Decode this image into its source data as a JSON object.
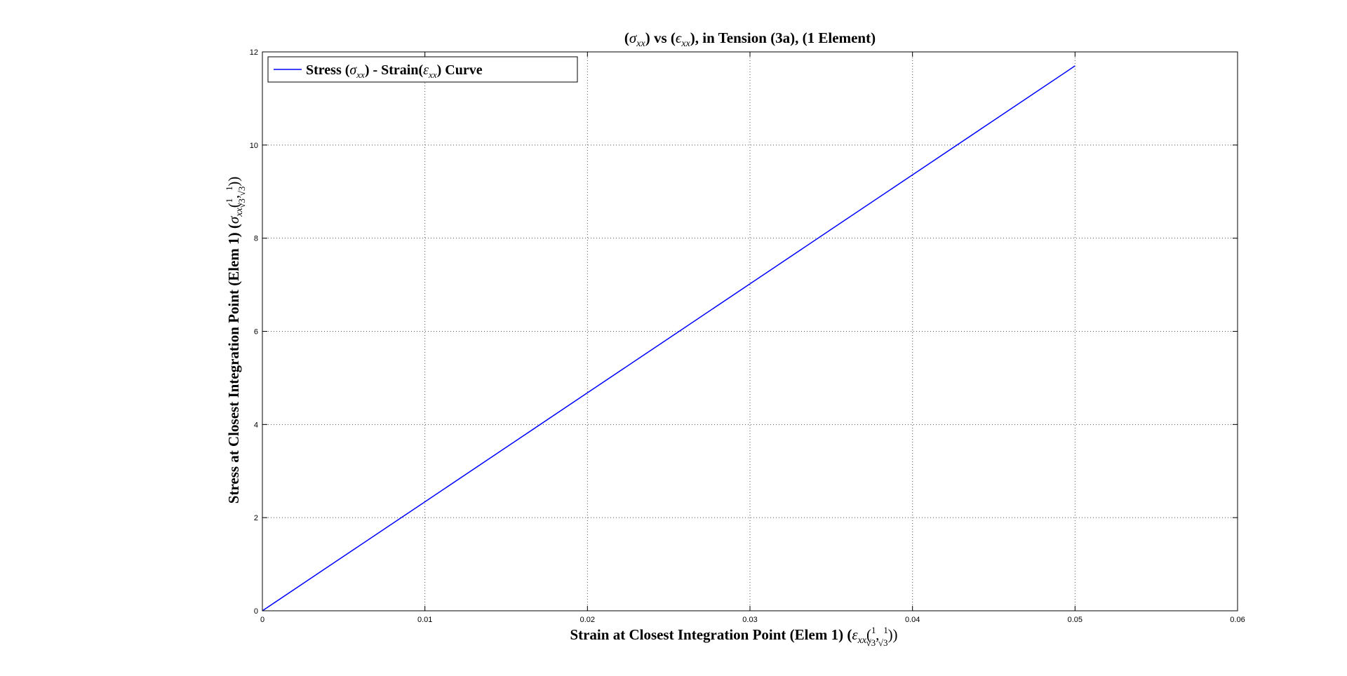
{
  "chart_data": {
    "type": "line",
    "title": "(σ_xx) vs (ε_xx), in Tension (3a), (1 Element)",
    "xlabel": "Strain at Closest Integration Point (Elem 1) (ε_xx(1/√3, 1/√3))",
    "ylabel": "Stress at Closest Integration Point (Elem 1) (σ_xx(1/√3, 1/√3))",
    "xlim": [
      0,
      0.06
    ],
    "ylim": [
      0,
      12
    ],
    "xticks": [
      "0",
      "0.01",
      "0.02",
      "0.03",
      "0.04",
      "0.05",
      "0.06"
    ],
    "yticks": [
      "0",
      "2",
      "4",
      "6",
      "8",
      "10",
      "12"
    ],
    "grid": true,
    "legend_position": "top-left",
    "series": [
      {
        "name": "Stress (σ_xx) - Strain(ε_xx) Curve",
        "color": "#0000ff",
        "x": [
          0,
          0.005,
          0.01,
          0.015,
          0.02,
          0.025,
          0.03,
          0.035,
          0.04,
          0.045,
          0.05
        ],
        "y": [
          0,
          1.17,
          2.34,
          3.51,
          4.68,
          5.85,
          7.02,
          8.19,
          9.36,
          10.53,
          11.7
        ]
      }
    ]
  },
  "text": {
    "title": {
      "p1": "(",
      "sigma": "σ",
      "sub1": "xx",
      "p2": ") vs (",
      "eps": "ϵ",
      "sub2": "xx",
      "rest": "), in Tension (3a), (1 Element)"
    },
    "xlabel": {
      "prefix": "Strain at Closest Integration Point (Elem 1) (",
      "eps": "ε",
      "sub": "xx",
      "open": "(",
      "one": "1",
      "sqrt": "√3",
      "comma": ",",
      "close": "))"
    },
    "ylabel": {
      "prefix": "Stress at Closest Integration Point (Elem 1) (",
      "sigma": "σ",
      "sub": "xx",
      "open": "(",
      "one": "1",
      "sqrt": "√3",
      "comma": ",",
      "close": "))"
    },
    "legend": {
      "a": "Stress (",
      "sigma": "σ",
      "sub1": "xx",
      "b": ") - Strain(",
      "eps": "ε",
      "sub2": "xx",
      "c": ") Curve"
    }
  }
}
